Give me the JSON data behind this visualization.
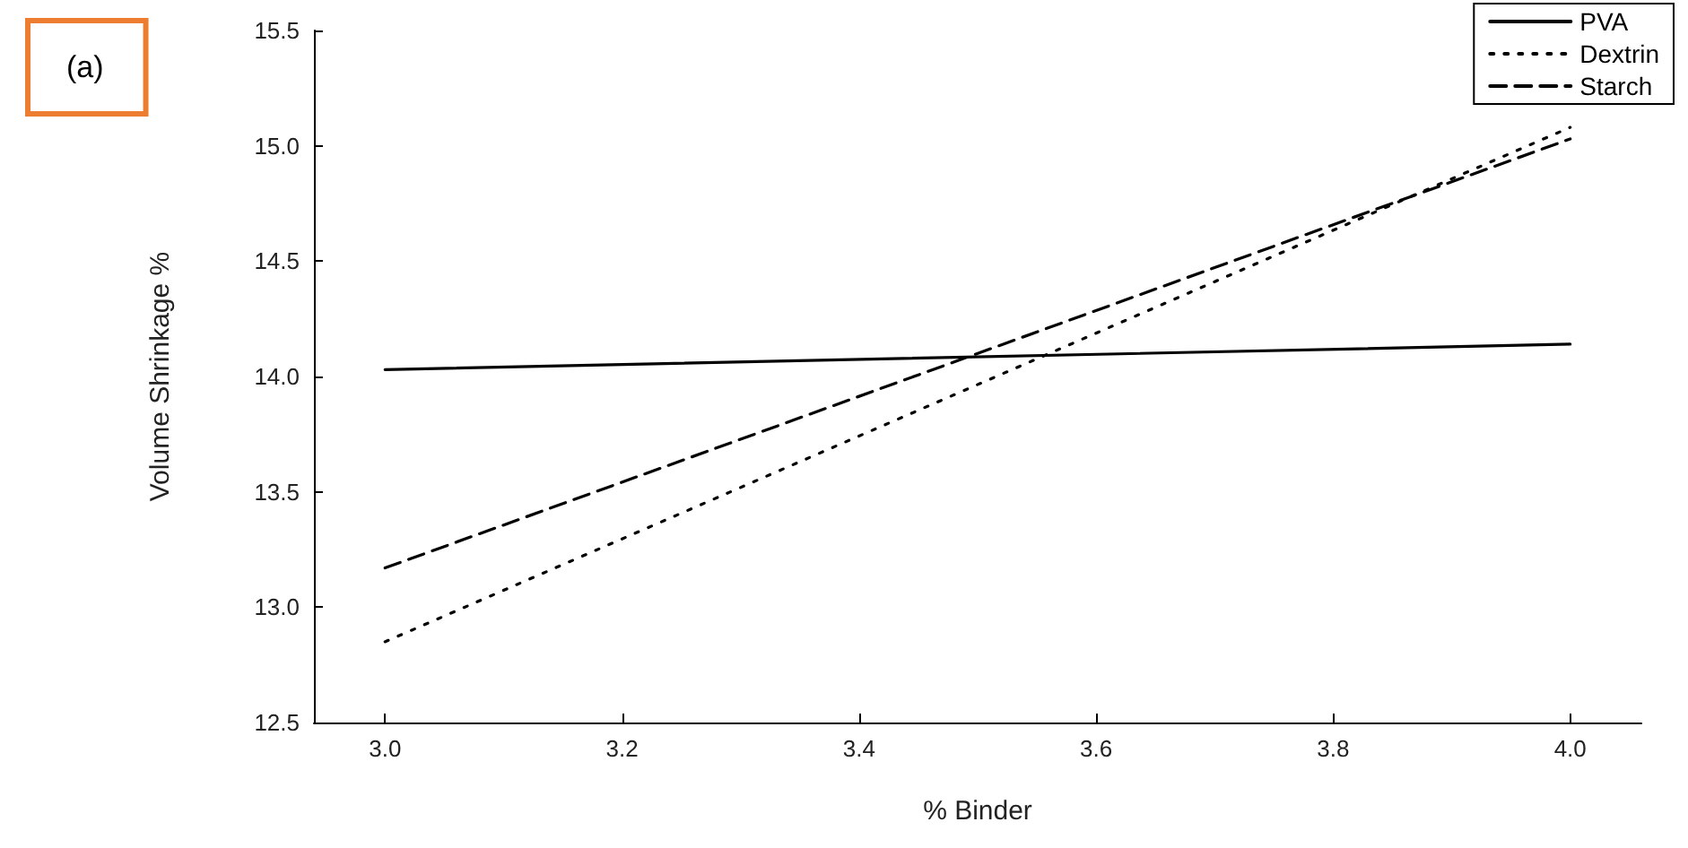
{
  "chart_data": {
    "type": "line",
    "xlabel": "% Binder",
    "ylabel": "Volume Shrinkage %",
    "annotations": [
      "(a)"
    ],
    "xlim": [
      2.94,
      4.06
    ],
    "ylim": [
      12.5,
      15.5
    ],
    "xticks": [
      {
        "value": 3,
        "label": "3.0"
      },
      {
        "value": 3.2,
        "label": "3.2"
      },
      {
        "value": 3.4,
        "label": "3.4"
      },
      {
        "value": 3.6,
        "label": "3.6"
      },
      {
        "value": 3.8,
        "label": "3.8"
      },
      {
        "value": 4,
        "label": "4.0"
      }
    ],
    "yticks": [
      {
        "value": 12.5,
        "label": "12.5"
      },
      {
        "value": 13,
        "label": "13.0"
      },
      {
        "value": 13.5,
        "label": "13.5"
      },
      {
        "value": 14,
        "label": "14.0"
      },
      {
        "value": 14.5,
        "label": "14.5"
      },
      {
        "value": 15,
        "label": "15.0"
      },
      {
        "value": 15.5,
        "label": "15.5"
      }
    ],
    "x": [
      3.0,
      4.0
    ],
    "grid": false,
    "legend": "top right",
    "marker": "none",
    "series": [
      {
        "name": "PVA",
        "color": "#000000",
        "line_style": "solid",
        "values": [
          14.03,
          14.14
        ]
      },
      {
        "name": "Dextrin",
        "color": "#000000",
        "line_style": "dotted",
        "values": [
          12.85,
          15.08
        ]
      },
      {
        "name": "Starch",
        "color": "#000000",
        "line_style": "dashed",
        "values": [
          13.17,
          15.03
        ]
      }
    ]
  }
}
